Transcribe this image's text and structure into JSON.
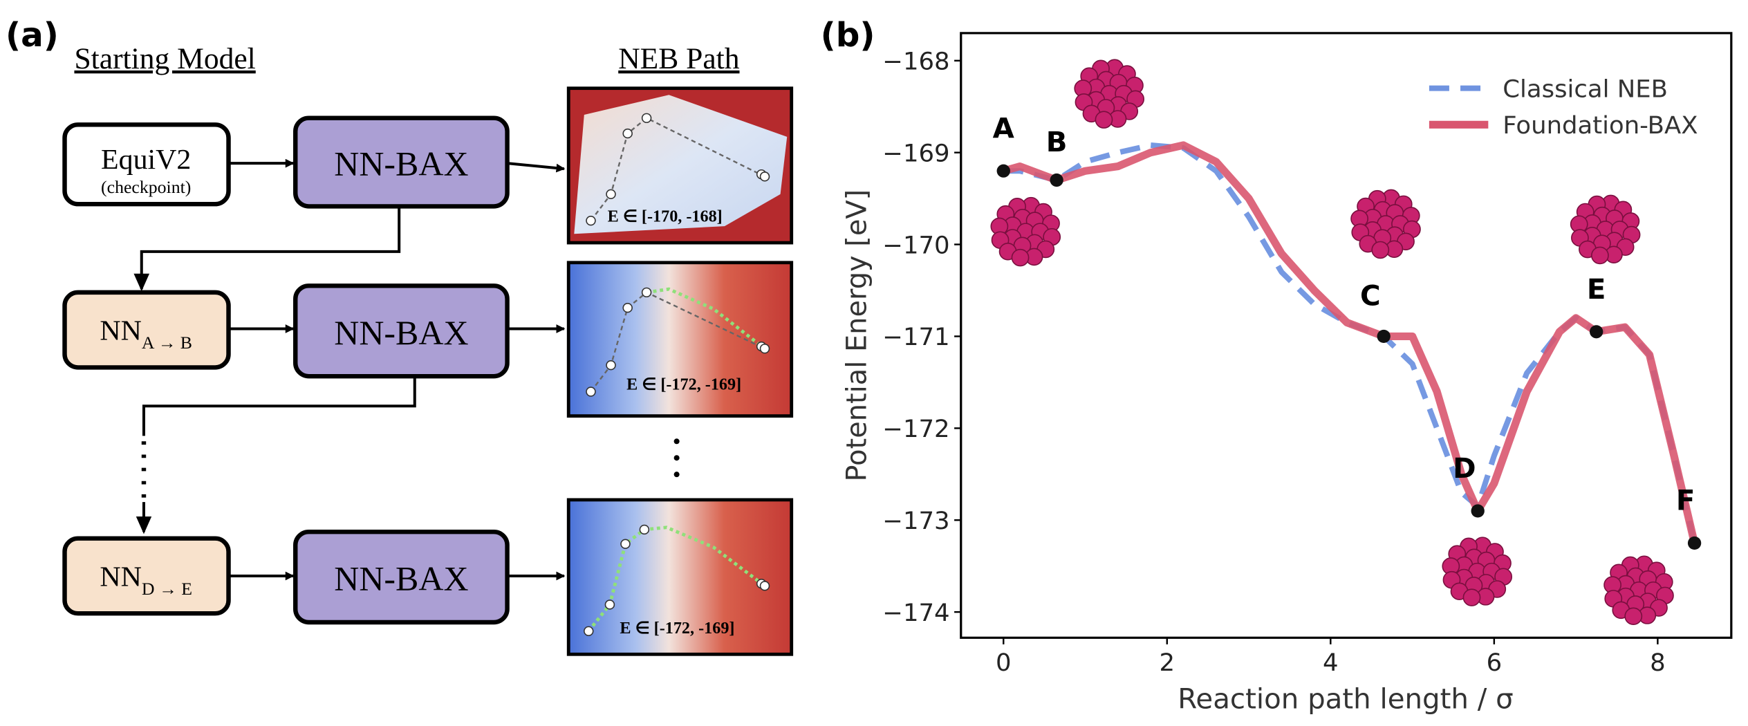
{
  "panel_a": {
    "label": "(a)",
    "left_title": "Starting Model",
    "right_title": "NEB Path",
    "start_model": {
      "label": "EquiV2",
      "sublabel": "(checkpoint)"
    },
    "models": [
      {
        "label": "NN",
        "subscript": "A → B"
      },
      {
        "label": "NN",
        "subscript": "D → E"
      }
    ],
    "processors": [
      "NN-BAX",
      "NN-BAX",
      "NN-BAX"
    ],
    "paths": [
      "E ∈ [-170, -168]",
      "E ∈ [-172, -169]",
      "E ∈ [-172, -169]"
    ]
  },
  "chart_data": {
    "type": "line",
    "panel_label": "(b)",
    "x_label": "Reaction path length / σ",
    "y_label": "Potential Energy [eV]",
    "x": [
      0,
      0.2,
      0.65,
      1.0,
      1.4,
      1.8,
      2.2,
      2.6,
      3.0,
      3.4,
      3.8,
      4.2,
      4.65,
      5.0,
      5.3,
      5.6,
      5.8,
      6.0,
      6.4,
      6.8,
      7.0,
      7.25,
      7.6,
      7.9,
      8.2,
      8.45
    ],
    "series": [
      {
        "name": "Classical NEB",
        "color": "#6f93e0",
        "dashed": true,
        "values": [
          -169.2,
          -169.2,
          -169.3,
          -169.1,
          -169.0,
          -168.92,
          -168.95,
          -169.2,
          -169.7,
          -170.3,
          -170.65,
          -170.85,
          -171.0,
          -171.3,
          -172.0,
          -172.7,
          -172.85,
          -172.3,
          -171.4,
          -170.95,
          -170.8,
          -170.95,
          -170.9,
          -171.2,
          -172.3,
          -173.25
        ]
      },
      {
        "name": "Foundation-BAX",
        "color": "#d9566f",
        "dashed": false,
        "values": [
          -169.2,
          -169.15,
          -169.3,
          -169.2,
          -169.15,
          -169.0,
          -168.92,
          -169.1,
          -169.5,
          -170.1,
          -170.5,
          -170.85,
          -171.0,
          -171.0,
          -171.6,
          -172.5,
          -172.9,
          -172.6,
          -171.6,
          -170.95,
          -170.8,
          -170.95,
          -170.9,
          -171.2,
          -172.3,
          -173.25
        ]
      }
    ],
    "points": [
      {
        "label": "A",
        "x": 0,
        "y": -169.2
      },
      {
        "label": "B",
        "x": 0.65,
        "y": -169.3
      },
      {
        "label": "C",
        "x": 4.65,
        "y": -171.0
      },
      {
        "label": "D",
        "x": 5.8,
        "y": -172.9
      },
      {
        "label": "E",
        "x": 7.25,
        "y": -170.95
      },
      {
        "label": "F",
        "x": 8.45,
        "y": -173.25
      }
    ],
    "xlim": [
      -0.52,
      8.9
    ],
    "ylim": [
      -174.28,
      -167.7
    ],
    "xticks": [
      0,
      2,
      4,
      6,
      8
    ],
    "yticks": [
      {
        "value": -174,
        "label": "−174"
      },
      {
        "value": -173,
        "label": "−173"
      },
      {
        "value": -172,
        "label": "−172"
      },
      {
        "value": -171,
        "label": "−171"
      },
      {
        "value": -170,
        "label": "−170"
      },
      {
        "value": -169,
        "label": "−169"
      },
      {
        "value": -168,
        "label": "−168"
      }
    ],
    "legend": "upper right"
  }
}
